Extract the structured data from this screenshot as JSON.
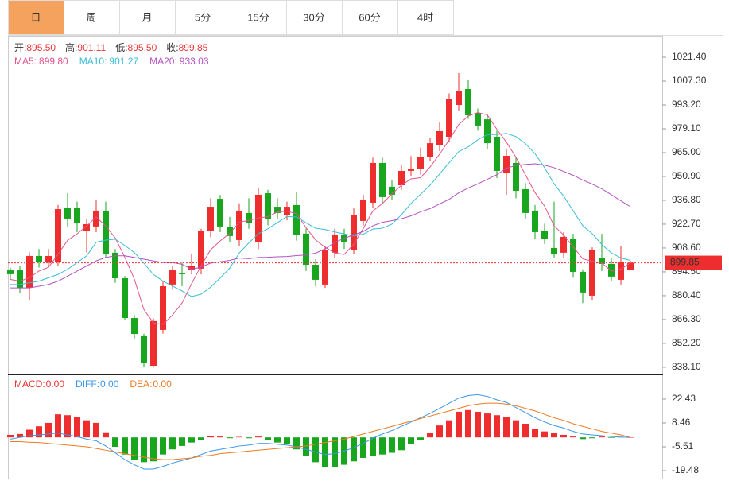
{
  "tabs": {
    "items": [
      "日",
      "周",
      "月",
      "5分",
      "15分",
      "30分",
      "60分",
      "4时"
    ],
    "selected": 0
  },
  "chart_data": [
    {
      "type": "candlestick",
      "info": [
        {
          "label": "开:",
          "value": "895.50"
        },
        {
          "label": "高:",
          "value": "901.11"
        },
        {
          "label": "低:",
          "value": "895.50"
        },
        {
          "label": "收:",
          "value": "899.85"
        }
      ],
      "open": [
        895.4,
        895.4,
        885.1,
        903.9,
        900.1,
        900.1,
        932.1,
        932.1,
        918.9,
        921.3,
        930.7,
        905.8,
        890.7,
        867.2,
        856.9,
        839.0,
        860.2,
        887.0,
        894.0,
        895.4,
        896.4,
        918.9,
        937.7,
        921.3,
        913.3,
        929.3,
        911.9,
        941.0,
        933.0,
        928.3,
        934.0,
        917.1,
        898.7,
        887.0,
        905.8,
        916.6,
        907.2,
        924.6,
        935.4,
        958.9,
        944.8,
        945.7,
        954.2,
        955.6,
        962.6,
        969.7,
        974.4,
        993.2,
        1002.6,
        988.5,
        984.7,
        974.4,
        952.8,
        958.9,
        943.4,
        930.7,
        918.9,
        908.6,
        905.8,
        914.2,
        894.5,
        880.4,
        902.5,
        899.2,
        889.8,
        895.5
      ],
      "high": [
        897,
        898,
        906,
        908,
        908,
        934,
        941,
        936,
        926,
        937,
        936,
        908,
        892,
        869,
        858,
        867,
        889,
        898,
        900,
        905,
        920,
        938,
        940,
        927,
        935,
        938,
        944,
        943,
        938,
        936,
        942,
        920,
        902,
        910,
        920,
        920,
        932,
        940,
        962,
        962,
        949,
        958,
        963,
        968,
        974,
        983,
        1000,
        1012,
        1008,
        991,
        987,
        978,
        967,
        962,
        947,
        934,
        923,
        936,
        918,
        917,
        896,
        909,
        917,
        903,
        910,
        901.11
      ],
      "low": [
        890,
        882,
        878,
        897,
        898,
        898,
        921,
        918,
        906,
        918,
        903,
        888,
        866,
        855,
        838,
        838,
        858,
        884,
        886,
        893,
        893,
        915,
        918,
        912,
        910,
        920,
        908,
        922,
        926,
        925,
        913,
        895,
        886,
        885,
        903,
        908,
        905,
        922,
        932,
        935,
        937,
        943,
        951,
        952,
        960,
        966,
        971,
        990,
        985,
        978,
        967,
        950,
        940,
        938,
        926,
        914,
        911,
        903,
        903,
        891,
        876,
        878,
        895,
        889,
        887,
        895.5
      ],
      "close": [
        893.1,
        885.1,
        903.9,
        900.1,
        903.9,
        931.6,
        926.0,
        923.6,
        922.7,
        930.7,
        904.8,
        890.7,
        867.2,
        857.8,
        840.4,
        865.4,
        886.0,
        895.4,
        893.1,
        897.8,
        918.9,
        933.0,
        921.3,
        915.7,
        930.7,
        923.6,
        940.1,
        926.0,
        929.3,
        933.0,
        916.1,
        898.7,
        889.8,
        907.2,
        916.6,
        911.9,
        928.3,
        936.8,
        958.9,
        938.7,
        940.1,
        954.2,
        955.6,
        962.2,
        970.6,
        977.7,
        996.5,
        1001.2,
        987.1,
        981.0,
        970.6,
        954.2,
        963.1,
        942.4,
        929.3,
        918.0,
        914.2,
        904.8,
        915.2,
        894.5,
        882.3,
        907.2,
        899.2,
        891.7,
        900.1,
        899.85
      ],
      "up_color": "#ee2e2e",
      "down_color": "#19a61f",
      "series": [
        {
          "name": "MA5:",
          "value_label": "899.80",
          "color": "#e4548a",
          "values": [
            890,
            889,
            891,
            895,
            897.2,
            904.9,
            913.1,
            917.0,
            921.6,
            926.9,
            921.6,
            914.5,
            903.2,
            890.2,
            872.2,
            864.3,
            863.4,
            869.0,
            876.1,
            887.5,
            898.2,
            907.6,
            912.8,
            917.3,
            923.9,
            924.9,
            926.3,
            927.2,
            929.9,
            930.4,
            928.9,
            920.6,
            913.4,
            909.0,
            905.7,
            904.8,
            910.8,
            920.2,
            930.5,
            934.9,
            940.6,
            945.7,
            949.5,
            950.2,
            956.5,
            964.1,
            972.5,
            981.6,
            986.6,
            988.7,
            987.3,
            978.8,
            971.2,
            962.3,
            951.9,
            941.4,
            933.4,
            921.7,
            916.3,
            909.3,
            902.2,
            900.8,
            899.7,
            895.0,
            896.1,
            899.8
          ]
        },
        {
          "name": "MA10:",
          "value_label": "901.27",
          "color": "#38bcd6",
          "values": [
            887,
            887,
            888,
            889,
            891,
            893,
            896,
            900,
            904,
            912.0,
            913.3,
            913.8,
            910.1,
            905.9,
            899.6,
            893.0,
            889.0,
            886.1,
            883.2,
            879.9,
            881.3,
            885.5,
            890.9,
            896.7,
            905.7,
            911.6,
            917.0,
            920.0,
            923.6,
            927.2,
            926.9,
            923.5,
            920.3,
            919.5,
            918.1,
            916.9,
            915.7,
            916.8,
            919.8,
            920.3,
            922.7,
            928.3,
            934.9,
            940.4,
            945.7,
            952.4,
            959.1,
            965.6,
            968.4,
            972.6,
            975.7,
            975.7,
            976.4,
            974.5,
            970.3,
            964.4,
            956.1,
            946.5,
            939.3,
            930.6,
            921.8,
            917.1,
            910.7,
            905.7,
            902.7,
            901.27
          ]
        },
        {
          "name": "MA20:",
          "value_label": "933.03",
          "color": "#b452c0",
          "values": [
            885,
            885,
            885,
            886,
            887,
            889,
            892,
            895,
            898,
            901,
            903,
            904,
            904,
            903,
            902,
            901,
            900,
            900,
            899,
            896.0,
            897.3,
            899.7,
            900.5,
            901.3,
            902.7,
            902.3,
            903.0,
            903.1,
            903.4,
            903.6,
            904.1,
            904.5,
            905.6,
            908.1,
            911.9,
            914.3,
            916.4,
            918.4,
            921.7,
            923.8,
            924.8,
            925.9,
            927.6,
            930.0,
            931.9,
            934.7,
            937.4,
            941.2,
            944.1,
            946.5,
            949.2,
            952.0,
            955.7,
            957.5,
            958.0,
            958.4,
            957.6,
            956.1,
            953.9,
            951.6,
            948.8,
            946.4,
            943.6,
            940.1,
            936.5,
            933.03
          ]
        }
      ],
      "ylim": [
        834.3,
        1034.1
      ],
      "yticks": [
        {
          "value": 1021.4,
          "label": "1021.40"
        },
        {
          "value": 1007.3,
          "label": "1007.30"
        },
        {
          "value": 993.2,
          "label": "993.20"
        },
        {
          "value": 979.1,
          "label": "979.10"
        },
        {
          "value": 965.0,
          "label": "965.00"
        },
        {
          "value": 950.9,
          "label": "950.90"
        },
        {
          "value": 936.8,
          "label": "936.80"
        },
        {
          "value": 922.7,
          "label": "922.70"
        },
        {
          "value": 908.6,
          "label": "908.60"
        },
        {
          "value": 894.5,
          "label": "894.50"
        },
        {
          "value": 880.4,
          "label": "880.40"
        },
        {
          "value": 866.3,
          "label": "866.30"
        },
        {
          "value": 852.2,
          "label": "852.20"
        },
        {
          "value": 838.1,
          "label": "838.10"
        }
      ],
      "last_price": 899.85,
      "last_price_color": "#ee2e2e"
    },
    {
      "type": "macd",
      "up_color": "#ee2e2e",
      "down_color": "#19a61f",
      "series": [
        {
          "name": "MACD:",
          "value_label": "0.00",
          "color": "#ee2e2e",
          "values": [
            1.5,
            2,
            4.5,
            6.5,
            8.5,
            13.5,
            13,
            12,
            10,
            8.5,
            3,
            -5.5,
            -10,
            -13,
            -14.5,
            -14,
            -10,
            -7,
            -5,
            -3,
            -1.5,
            0.8,
            0.5,
            -0.5,
            0.3,
            -0.5,
            0.5,
            -1.5,
            -3,
            -4,
            -7,
            -11,
            -14.5,
            -17.5,
            -17.5,
            -16,
            -14,
            -12,
            -11,
            -10,
            -9,
            -7.5,
            -4,
            -1.5,
            2.5,
            7,
            10,
            15,
            16,
            15,
            14,
            13,
            12,
            10,
            8,
            5,
            3.5,
            2.5,
            1.5,
            0.5,
            -1,
            -0.5,
            0.5,
            -0.3,
            0.2,
            0
          ]
        },
        {
          "name": "DIFF:",
          "value_label": "0.00",
          "color": "#3a97e6",
          "values": [
            -1,
            0,
            1,
            1.5,
            2,
            2.5,
            1.5,
            0.5,
            -1,
            -2,
            -5,
            -9,
            -13,
            -16,
            -18.5,
            -18.5,
            -17,
            -15,
            -13.5,
            -12,
            -10,
            -8,
            -7,
            -6,
            -5,
            -4.5,
            -3.5,
            -3.5,
            -4,
            -4.5,
            -5.5,
            -7,
            -8.5,
            -10,
            -9.5,
            -8,
            -6,
            -3.5,
            -0.5,
            2,
            4,
            6.5,
            9,
            11.5,
            14,
            17,
            20,
            23,
            24.5,
            25,
            24,
            22,
            20.5,
            17.5,
            14.5,
            11.5,
            9,
            7,
            5.5,
            3.5,
            2,
            1.5,
            1,
            0.5,
            0.2,
            0
          ]
        },
        {
          "name": "DEA:",
          "value_label": "0.00",
          "color": "#f07a22",
          "values": [
            -2.5,
            -2.5,
            -2.8,
            -3,
            -3.5,
            -4,
            -4.5,
            -5,
            -5.5,
            -6.5,
            -7.5,
            -8.5,
            -9.5,
            -10.5,
            -11.5,
            -12.5,
            -13,
            -13,
            -12.5,
            -12,
            -11,
            -10.5,
            -9.5,
            -9,
            -8.5,
            -8,
            -7.5,
            -7,
            -6.5,
            -6,
            -5.5,
            -5,
            -4,
            -3,
            -2,
            -1,
            0.5,
            2,
            3.5,
            5,
            6.5,
            8,
            9.5,
            11,
            12.5,
            14,
            15.5,
            17,
            18.5,
            19.5,
            20,
            20,
            19.5,
            18.5,
            17,
            15.5,
            13.5,
            11.5,
            10,
            8,
            6.5,
            5,
            3.5,
            2.5,
            1.5,
            0
          ]
        }
      ],
      "ylim": [
        -24.1,
        35.9
      ],
      "yticks": [
        22.43,
        8.46,
        -5.51,
        -19.48
      ]
    }
  ]
}
